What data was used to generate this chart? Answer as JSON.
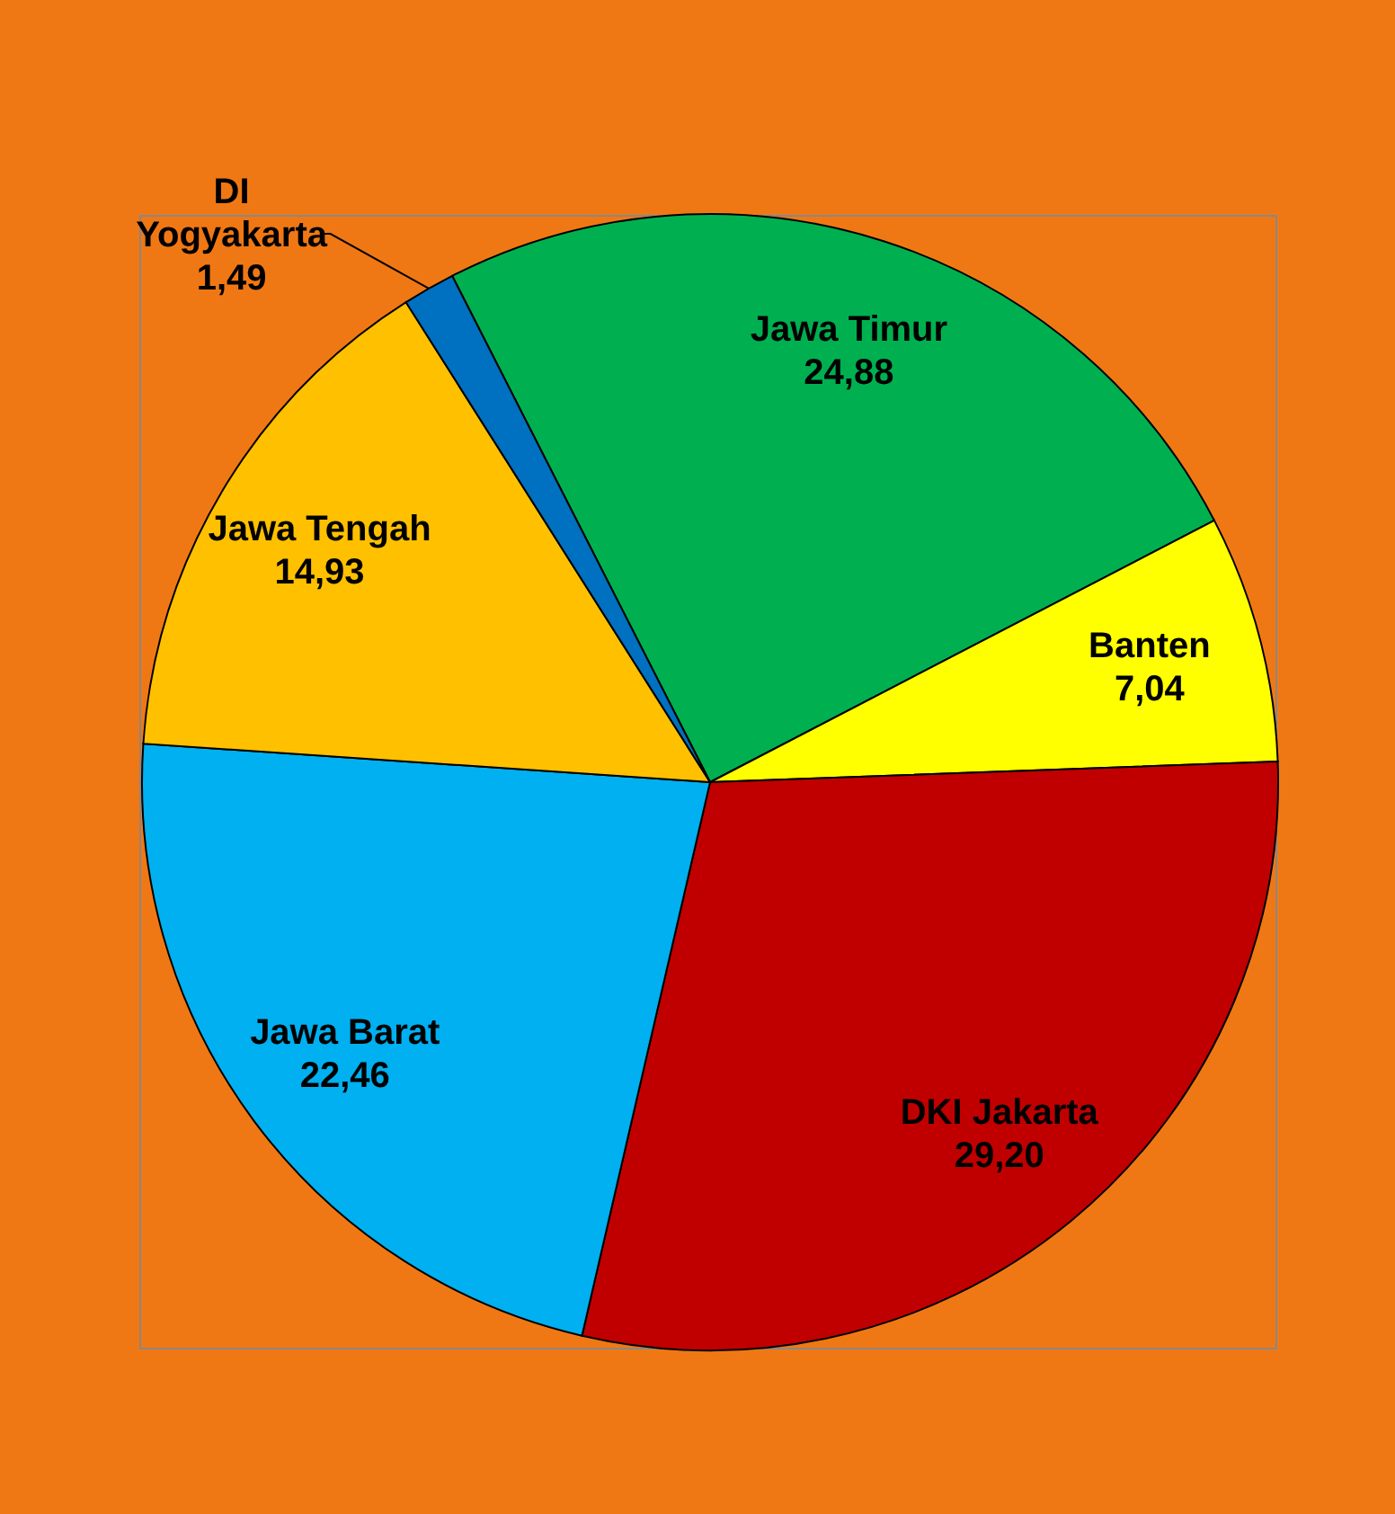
{
  "chart_data": {
    "type": "pie",
    "categories": [
      "Jawa Timur",
      "Banten",
      "DKI Jakarta",
      "Jawa Barat",
      "Jawa Tengah",
      "DI Yogyakarta"
    ],
    "values": [
      24.88,
      7.04,
      29.2,
      22.46,
      14.93,
      1.49
    ],
    "value_labels": [
      "24,88",
      "7,04",
      "29,20",
      "22,46",
      "14,93",
      "1,49"
    ],
    "colors": [
      "#00b050",
      "#ffff00",
      "#c00000",
      "#00b0f0",
      "#ffc000",
      "#0070c0"
    ]
  }
}
